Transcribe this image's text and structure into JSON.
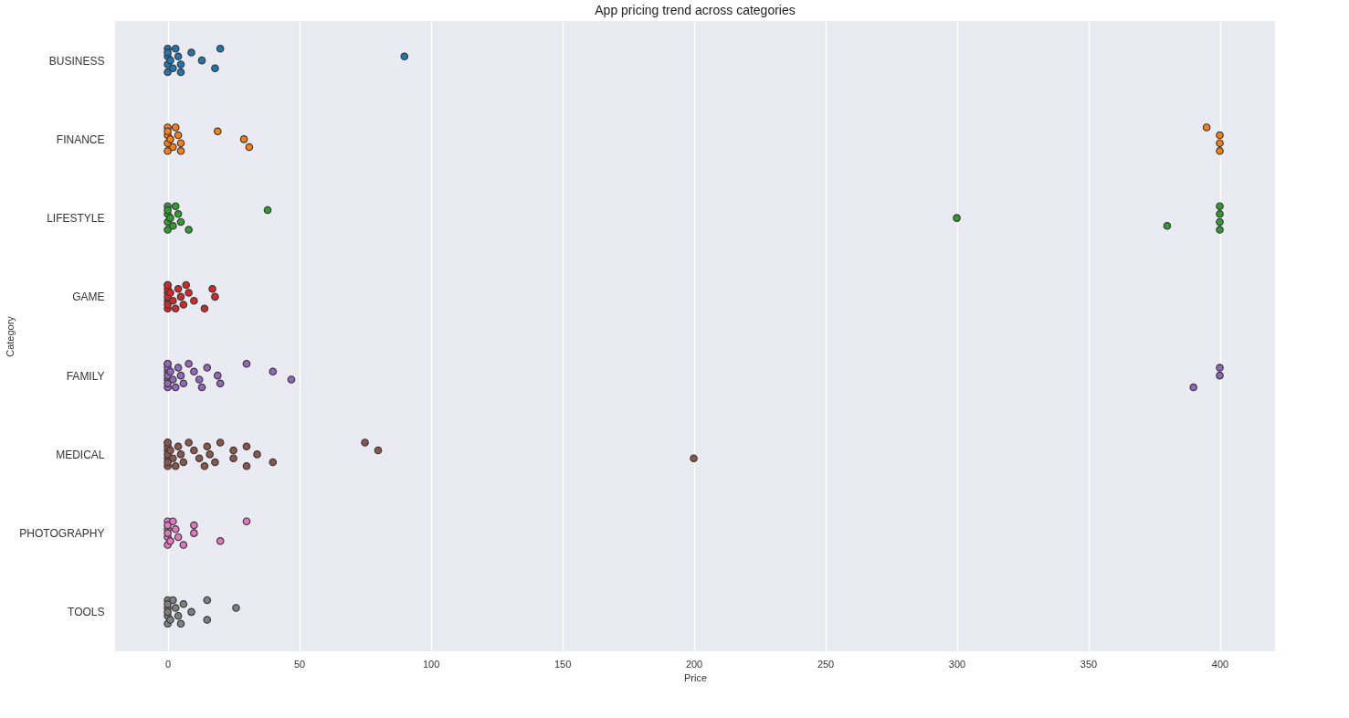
{
  "chart_data": {
    "type": "scatter",
    "orientation": "horizontal",
    "title": "App pricing trend across categories",
    "xlabel": "Price",
    "ylabel": "Category",
    "categories": [
      "BUSINESS",
      "FINANCE",
      "LIFESTYLE",
      "GAME",
      "FAMILY",
      "MEDICAL",
      "PHOTOGRAPHY",
      "TOOLS"
    ],
    "series": [
      {
        "color": "#1f77b4",
        "x": [
          "BUSINESS",
          "BUSINESS",
          "BUSINESS",
          "BUSINESS",
          "BUSINESS",
          "BUSINESS",
          "BUSINESS",
          "BUSINESS",
          "BUSINESS",
          "BUSINESS",
          "BUSINESS",
          "BUSINESS",
          "BUSINESS",
          "BUSINESS",
          "BUSINESS",
          "BUSINESS"
        ],
        "values": [
          0,
          0,
          0,
          0,
          0,
          1,
          2,
          3,
          4,
          5,
          5,
          9,
          13,
          18,
          20,
          90
        ]
      },
      {
        "color": "#ff7f0e",
        "x": [
          "FINANCE",
          "FINANCE",
          "FINANCE",
          "FINANCE",
          "FINANCE",
          "FINANCE",
          "FINANCE",
          "FINANCE",
          "FINANCE",
          "FINANCE",
          "FINANCE",
          "FINANCE",
          "FINANCE",
          "FINANCE",
          "FINANCE",
          "FINANCE",
          "FINANCE",
          "FINANCE"
        ],
        "values": [
          0,
          0,
          0,
          0,
          0,
          1,
          2,
          3,
          4,
          5,
          5,
          19,
          29,
          31,
          395,
          400,
          400,
          400
        ]
      },
      {
        "color": "#2ca02c",
        "x": [
          "LIFESTYLE",
          "LIFESTYLE",
          "LIFESTYLE",
          "LIFESTYLE",
          "LIFESTYLE",
          "LIFESTYLE",
          "LIFESTYLE",
          "LIFESTYLE",
          "LIFESTYLE",
          "LIFESTYLE",
          "LIFESTYLE",
          "LIFESTYLE",
          "LIFESTYLE",
          "LIFESTYLE",
          "LIFESTYLE",
          "LIFESTYLE",
          "LIFESTYLE",
          "LIFESTYLE"
        ],
        "values": [
          0,
          0,
          0,
          0,
          0,
          1,
          2,
          3,
          4,
          5,
          8,
          38,
          300,
          380,
          400,
          400,
          400,
          400
        ]
      },
      {
        "color": "#d62728",
        "x": [
          "GAME",
          "GAME",
          "GAME",
          "GAME",
          "GAME",
          "GAME",
          "GAME",
          "GAME",
          "GAME",
          "GAME",
          "GAME",
          "GAME",
          "GAME",
          "GAME",
          "GAME",
          "GAME",
          "GAME",
          "GAME",
          "GAME",
          "GAME"
        ],
        "values": [
          0,
          0,
          0,
          0,
          0,
          0,
          0,
          0,
          1,
          2,
          3,
          4,
          5,
          6,
          7,
          8,
          10,
          14,
          17,
          18
        ]
      },
      {
        "color": "#9467bd",
        "x": [
          "FAMILY",
          "FAMILY",
          "FAMILY",
          "FAMILY",
          "FAMILY",
          "FAMILY",
          "FAMILY",
          "FAMILY",
          "FAMILY",
          "FAMILY",
          "FAMILY",
          "FAMILY",
          "FAMILY",
          "FAMILY",
          "FAMILY",
          "FAMILY",
          "FAMILY",
          "FAMILY",
          "FAMILY",
          "FAMILY",
          "FAMILY",
          "FAMILY",
          "FAMILY",
          "FAMILY",
          "FAMILY",
          "FAMILY",
          "FAMILY"
        ],
        "values": [
          0,
          0,
          0,
          0,
          0,
          0,
          0,
          0,
          1,
          2,
          3,
          4,
          5,
          6,
          8,
          10,
          12,
          13,
          15,
          19,
          20,
          30,
          40,
          47,
          390,
          400,
          400
        ]
      },
      {
        "color": "#8c564b",
        "x": [
          "MEDICAL",
          "MEDICAL",
          "MEDICAL",
          "MEDICAL",
          "MEDICAL",
          "MEDICAL",
          "MEDICAL",
          "MEDICAL",
          "MEDICAL",
          "MEDICAL",
          "MEDICAL",
          "MEDICAL",
          "MEDICAL",
          "MEDICAL",
          "MEDICAL",
          "MEDICAL",
          "MEDICAL",
          "MEDICAL",
          "MEDICAL",
          "MEDICAL",
          "MEDICAL",
          "MEDICAL",
          "MEDICAL",
          "MEDICAL",
          "MEDICAL",
          "MEDICAL",
          "MEDICAL",
          "MEDICAL",
          "MEDICAL",
          "MEDICAL",
          "MEDICAL"
        ],
        "values": [
          0,
          0,
          0,
          0,
          0,
          0,
          0,
          0,
          1,
          2,
          3,
          4,
          5,
          6,
          8,
          10,
          12,
          14,
          15,
          16,
          18,
          20,
          25,
          25,
          30,
          30,
          34,
          40,
          75,
          80,
          200
        ]
      },
      {
        "color": "#e377c2",
        "x": [
          "PHOTOGRAPHY",
          "PHOTOGRAPHY",
          "PHOTOGRAPHY",
          "PHOTOGRAPHY",
          "PHOTOGRAPHY",
          "PHOTOGRAPHY",
          "PHOTOGRAPHY",
          "PHOTOGRAPHY",
          "PHOTOGRAPHY",
          "PHOTOGRAPHY",
          "PHOTOGRAPHY",
          "PHOTOGRAPHY",
          "PHOTOGRAPHY",
          "PHOTOGRAPHY",
          "PHOTOGRAPHY"
        ],
        "values": [
          0,
          0,
          0,
          0,
          0,
          0,
          1,
          2,
          3,
          4,
          6,
          10,
          10,
          20,
          30
        ]
      },
      {
        "color": "#7f7f7f",
        "x": [
          "TOOLS",
          "TOOLS",
          "TOOLS",
          "TOOLS",
          "TOOLS",
          "TOOLS",
          "TOOLS",
          "TOOLS",
          "TOOLS",
          "TOOLS",
          "TOOLS",
          "TOOLS",
          "TOOLS",
          "TOOLS",
          "TOOLS",
          "TOOLS"
        ],
        "values": [
          0,
          0,
          0,
          0,
          0,
          0,
          1,
          2,
          3,
          4,
          5,
          6,
          9,
          15,
          15,
          26
        ]
      }
    ],
    "xlim": [
      -20,
      421
    ],
    "xticks": [
      0,
      50,
      100,
      150,
      200,
      250,
      300,
      350,
      400
    ],
    "grid": "x",
    "marker": "circle"
  }
}
